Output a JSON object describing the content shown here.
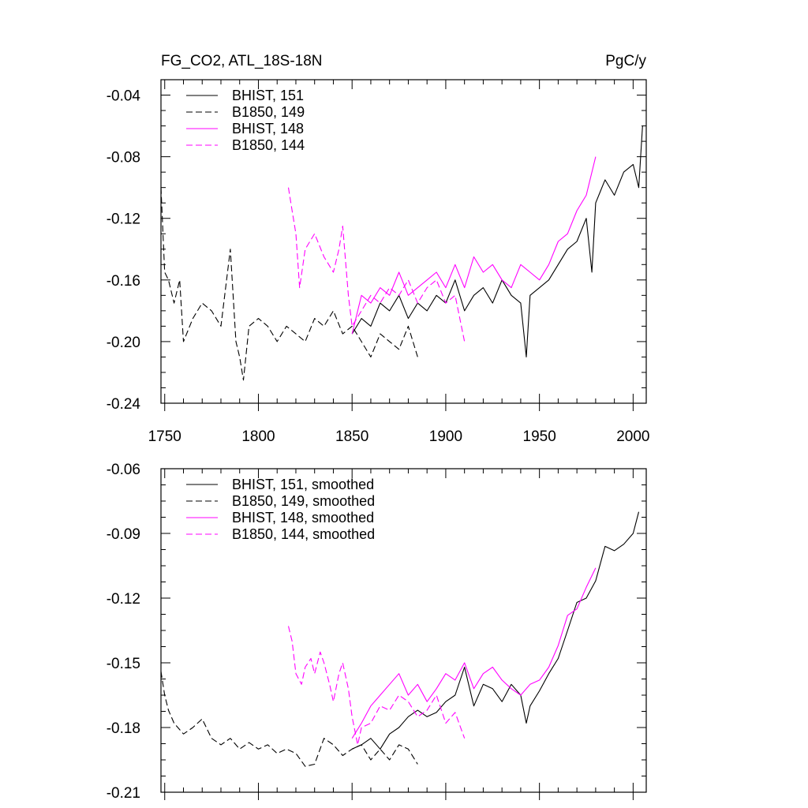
{
  "chart_data": [
    {
      "type": "line",
      "title": "FG_CO2, ATL_18S-18N",
      "units": "PgC/y",
      "xlim": [
        1748,
        2007
      ],
      "ylim": [
        -0.24,
        -0.03
      ],
      "xticks": [
        1750,
        1800,
        1850,
        1900,
        1950,
        2000
      ],
      "xtick_labels": [
        "1750",
        "1800",
        "1850",
        "1900",
        "1950",
        "2000"
      ],
      "yticks": [
        -0.24,
        -0.2,
        -0.16,
        -0.12,
        -0.08,
        -0.04
      ],
      "ytick_labels": [
        "-0.24",
        "-0.20",
        "-0.16",
        "-0.12",
        "-0.08",
        "-0.04"
      ],
      "legend_position": "top-left",
      "series": [
        {
          "name": "BHIST, 151",
          "color": "#000000",
          "dash": "solid",
          "x": [
            1850,
            1855,
            1860,
            1865,
            1870,
            1875,
            1880,
            1885,
            1890,
            1895,
            1900,
            1905,
            1910,
            1915,
            1920,
            1925,
            1930,
            1935,
            1940,
            1943,
            1945,
            1950,
            1955,
            1960,
            1965,
            1970,
            1975,
            1978,
            1980,
            1985,
            1990,
            1995,
            2000,
            2003,
            2005
          ],
          "y": [
            -0.195,
            -0.185,
            -0.19,
            -0.175,
            -0.18,
            -0.17,
            -0.185,
            -0.175,
            -0.18,
            -0.17,
            -0.175,
            -0.16,
            -0.18,
            -0.17,
            -0.165,
            -0.175,
            -0.16,
            -0.17,
            -0.175,
            -0.21,
            -0.17,
            -0.165,
            -0.16,
            -0.15,
            -0.14,
            -0.135,
            -0.12,
            -0.155,
            -0.11,
            -0.095,
            -0.105,
            -0.09,
            -0.085,
            -0.1,
            -0.06
          ]
        },
        {
          "name": "B1850, 149",
          "color": "#000000",
          "dash": "dashed",
          "x": [
            1748,
            1750,
            1752,
            1755,
            1758,
            1760,
            1765,
            1770,
            1775,
            1780,
            1785,
            1788,
            1790,
            1792,
            1795,
            1800,
            1805,
            1810,
            1815,
            1820,
            1825,
            1830,
            1835,
            1840,
            1845,
            1850,
            1855,
            1860,
            1865,
            1870,
            1875,
            1880,
            1885
          ],
          "y": [
            -0.1,
            -0.155,
            -0.16,
            -0.175,
            -0.16,
            -0.2,
            -0.185,
            -0.175,
            -0.18,
            -0.19,
            -0.14,
            -0.2,
            -0.21,
            -0.225,
            -0.19,
            -0.185,
            -0.19,
            -0.2,
            -0.19,
            -0.195,
            -0.2,
            -0.185,
            -0.19,
            -0.18,
            -0.195,
            -0.19,
            -0.2,
            -0.21,
            -0.195,
            -0.2,
            -0.205,
            -0.19,
            -0.21
          ]
        },
        {
          "name": "BHIST, 148",
          "color": "#ff00ff",
          "dash": "solid",
          "x": [
            1850,
            1855,
            1860,
            1865,
            1870,
            1875,
            1880,
            1885,
            1890,
            1895,
            1900,
            1905,
            1910,
            1915,
            1920,
            1925,
            1930,
            1935,
            1940,
            1945,
            1950,
            1955,
            1960,
            1965,
            1970,
            1975,
            1980
          ],
          "y": [
            -0.195,
            -0.17,
            -0.175,
            -0.165,
            -0.17,
            -0.155,
            -0.17,
            -0.165,
            -0.16,
            -0.155,
            -0.165,
            -0.15,
            -0.165,
            -0.145,
            -0.155,
            -0.15,
            -0.16,
            -0.165,
            -0.15,
            -0.155,
            -0.16,
            -0.15,
            -0.135,
            -0.13,
            -0.115,
            -0.105,
            -0.08
          ]
        },
        {
          "name": "B1850, 144",
          "color": "#ff00ff",
          "dash": "dashed",
          "x": [
            1816,
            1818,
            1820,
            1822,
            1825,
            1830,
            1835,
            1840,
            1843,
            1845,
            1848,
            1850,
            1855,
            1860,
            1865,
            1870,
            1875,
            1880,
            1885,
            1890,
            1895,
            1900,
            1905,
            1910
          ],
          "y": [
            -0.1,
            -0.115,
            -0.13,
            -0.165,
            -0.14,
            -0.13,
            -0.145,
            -0.155,
            -0.14,
            -0.125,
            -0.17,
            -0.19,
            -0.18,
            -0.17,
            -0.175,
            -0.165,
            -0.17,
            -0.16,
            -0.175,
            -0.165,
            -0.16,
            -0.175,
            -0.17,
            -0.2
          ]
        }
      ]
    },
    {
      "type": "line",
      "title": "",
      "xlim": [
        1748,
        2007
      ],
      "ylim": [
        -0.21,
        -0.06
      ],
      "xticks": [
        1750,
        1800,
        1850,
        1900,
        1950,
        2000
      ],
      "yticks": [
        -0.21,
        -0.18,
        -0.15,
        -0.12,
        -0.09,
        -0.06
      ],
      "ytick_labels": [
        "-0.21",
        "-0.18",
        "-0.15",
        "-0.12",
        "-0.09",
        "-0.06"
      ],
      "legend_position": "top-left",
      "series": [
        {
          "name": "BHIST, 151, smoothed",
          "color": "#000000",
          "dash": "solid",
          "x": [
            1850,
            1855,
            1860,
            1865,
            1870,
            1875,
            1880,
            1885,
            1890,
            1895,
            1900,
            1905,
            1910,
            1915,
            1920,
            1925,
            1930,
            1935,
            1940,
            1943,
            1945,
            1950,
            1955,
            1960,
            1965,
            1970,
            1975,
            1980,
            1985,
            1990,
            1995,
            2000,
            2003
          ],
          "y": [
            -0.19,
            -0.188,
            -0.185,
            -0.19,
            -0.183,
            -0.18,
            -0.175,
            -0.172,
            -0.175,
            -0.173,
            -0.168,
            -0.165,
            -0.152,
            -0.17,
            -0.16,
            -0.162,
            -0.168,
            -0.16,
            -0.165,
            -0.178,
            -0.17,
            -0.163,
            -0.155,
            -0.148,
            -0.135,
            -0.122,
            -0.12,
            -0.112,
            -0.096,
            -0.098,
            -0.095,
            -0.09,
            -0.08
          ]
        },
        {
          "name": "B1850, 149, smoothed",
          "color": "#000000",
          "dash": "dashed",
          "x": [
            1748,
            1750,
            1752,
            1755,
            1760,
            1765,
            1770,
            1775,
            1780,
            1785,
            1790,
            1795,
            1800,
            1805,
            1810,
            1815,
            1820,
            1825,
            1830,
            1835,
            1840,
            1845,
            1850,
            1855,
            1860,
            1865,
            1870,
            1875,
            1880,
            1885
          ],
          "y": [
            -0.154,
            -0.165,
            -0.172,
            -0.178,
            -0.183,
            -0.18,
            -0.176,
            -0.185,
            -0.188,
            -0.185,
            -0.19,
            -0.187,
            -0.19,
            -0.188,
            -0.192,
            -0.19,
            -0.192,
            -0.198,
            -0.197,
            -0.185,
            -0.188,
            -0.193,
            -0.19,
            -0.188,
            -0.195,
            -0.19,
            -0.195,
            -0.188,
            -0.19,
            -0.197
          ]
        },
        {
          "name": "BHIST, 148, smoothed",
          "color": "#ff00ff",
          "dash": "solid",
          "x": [
            1850,
            1855,
            1860,
            1865,
            1870,
            1875,
            1880,
            1885,
            1890,
            1895,
            1900,
            1905,
            1910,
            1915,
            1920,
            1925,
            1930,
            1935,
            1940,
            1945,
            1950,
            1955,
            1960,
            1965,
            1970,
            1975,
            1980
          ],
          "y": [
            -0.185,
            -0.178,
            -0.17,
            -0.165,
            -0.16,
            -0.155,
            -0.165,
            -0.16,
            -0.168,
            -0.162,
            -0.155,
            -0.158,
            -0.15,
            -0.162,
            -0.155,
            -0.152,
            -0.158,
            -0.162,
            -0.165,
            -0.16,
            -0.158,
            -0.152,
            -0.142,
            -0.128,
            -0.125,
            -0.115,
            -0.106
          ]
        },
        {
          "name": "B1850, 144, smoothed",
          "color": "#ff00ff",
          "dash": "dashed",
          "x": [
            1816,
            1818,
            1820,
            1823,
            1825,
            1828,
            1830,
            1833,
            1835,
            1838,
            1840,
            1843,
            1845,
            1848,
            1850,
            1853,
            1855,
            1860,
            1865,
            1870,
            1875,
            1880,
            1885,
            1890,
            1895,
            1900,
            1905,
            1910
          ],
          "y": [
            -0.133,
            -0.14,
            -0.155,
            -0.16,
            -0.152,
            -0.148,
            -0.155,
            -0.145,
            -0.15,
            -0.16,
            -0.168,
            -0.155,
            -0.15,
            -0.162,
            -0.175,
            -0.188,
            -0.18,
            -0.178,
            -0.17,
            -0.172,
            -0.165,
            -0.168,
            -0.175,
            -0.172,
            -0.165,
            -0.178,
            -0.173,
            -0.185
          ]
        }
      ]
    }
  ]
}
